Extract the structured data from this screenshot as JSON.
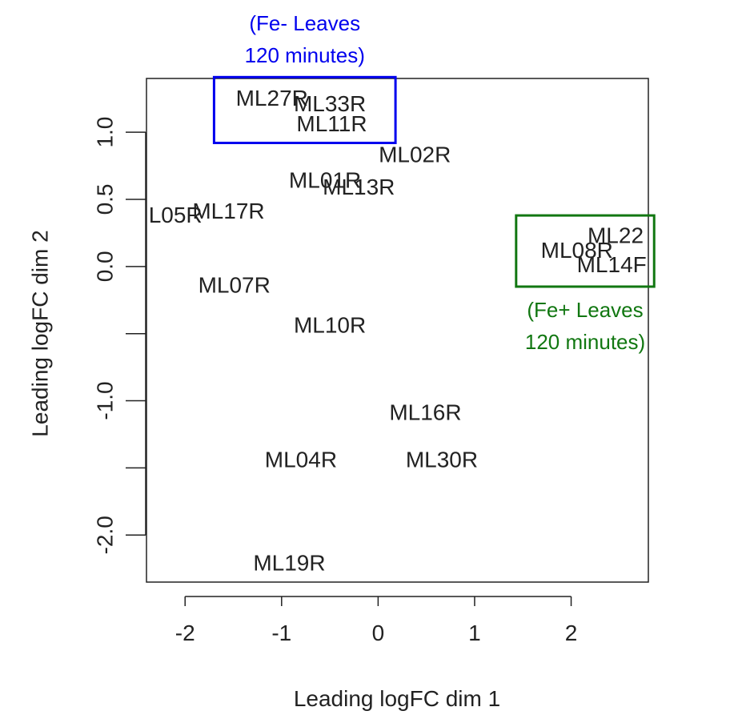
{
  "chart_data": {
    "type": "scatter",
    "xlabel": "Leading logFC dim 1",
    "ylabel": "Leading logFC dim 2",
    "xlim": [
      -2.4,
      2.8
    ],
    "ylim": [
      -2.35,
      1.4
    ],
    "x_ticks": [
      -2,
      -1,
      0,
      1,
      2
    ],
    "x_tick_labels": [
      "-2",
      "-1",
      "0",
      "1",
      "2"
    ],
    "y_ticks": [
      -2.0,
      -1.5,
      -1.0,
      -0.5,
      0.0,
      0.5,
      1.0
    ],
    "y_tick_labels": [
      "-2.0",
      "",
      "-1.0",
      "",
      "0.0",
      "0.5",
      "1.0"
    ],
    "grid": false,
    "points": [
      {
        "label": "ML27R",
        "x": -1.1,
        "y": 1.24
      },
      {
        "label": "ML33R",
        "x": -0.5,
        "y": 1.2
      },
      {
        "label": "ML11R",
        "x": -0.48,
        "y": 1.05
      },
      {
        "label": "ML02R",
        "x": 0.38,
        "y": 0.82
      },
      {
        "label": "ML01R",
        "x": -0.55,
        "y": 0.63
      },
      {
        "label": "ML13R",
        "x": -0.2,
        "y": 0.58
      },
      {
        "label": "L05R",
        "x": -2.1,
        "y": 0.37
      },
      {
        "label": "ML17R",
        "x": -1.55,
        "y": 0.4
      },
      {
        "label": "ML22",
        "x": 2.46,
        "y": 0.22
      },
      {
        "label": "ML08R",
        "x": 2.06,
        "y": 0.11
      },
      {
        "label": "ML14F",
        "x": 2.42,
        "y": 0.0
      },
      {
        "label": "ML07R",
        "x": -1.49,
        "y": -0.15
      },
      {
        "label": "ML10R",
        "x": -0.5,
        "y": -0.45
      },
      {
        "label": "ML16R",
        "x": 0.49,
        "y": -1.1
      },
      {
        "label": "ML04R",
        "x": -0.8,
        "y": -1.45
      },
      {
        "label": "ML30R",
        "x": 0.66,
        "y": -1.45
      },
      {
        "label": "ML19R",
        "x": -0.92,
        "y": -2.22
      }
    ],
    "annotations": [
      {
        "lines": [
          "(Fe- Leaves",
          "120 minutes)"
        ],
        "color": "#0000ee",
        "box_x": [
          -1.7,
          0.18
        ],
        "box_y": [
          0.92,
          1.41
        ]
      },
      {
        "lines": [
          "(Fe+ Leaves",
          "120 minutes)"
        ],
        "color": "#117711",
        "box_x": [
          1.43,
          2.86
        ],
        "box_y": [
          -0.15,
          0.38
        ]
      }
    ]
  }
}
